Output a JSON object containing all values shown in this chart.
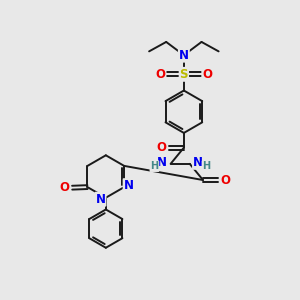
{
  "bg_color": "#e8e8e8",
  "bond_color": "#1a1a1a",
  "bond_width": 1.4,
  "atom_colors": {
    "N": "#0000ee",
    "O": "#ee0000",
    "S": "#bbbb00",
    "H": "#448888",
    "C": "#1a1a1a"
  },
  "font_size_atom": 8.5,
  "font_size_h": 7.0
}
